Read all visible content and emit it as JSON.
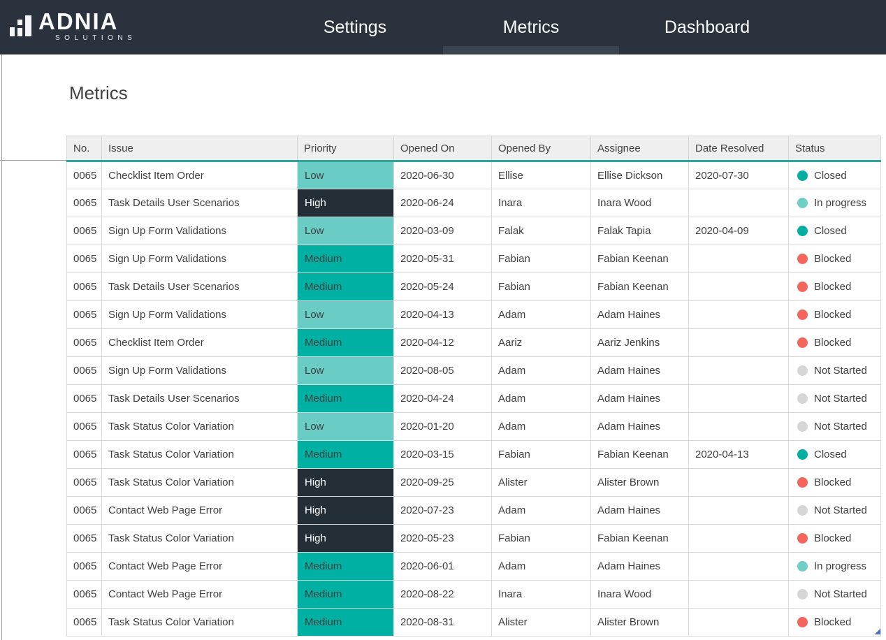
{
  "brand": {
    "name": "ADNIA",
    "tagline": "SOLUTIONS"
  },
  "nav": {
    "items": [
      {
        "label": "Settings",
        "active": false
      },
      {
        "label": "Metrics",
        "active": true
      },
      {
        "label": "Dashboard",
        "active": false
      }
    ]
  },
  "page": {
    "title": "Metrics"
  },
  "table": {
    "columns": [
      "No.",
      "Issue",
      "Priority",
      "Opened On",
      "Opened By",
      "Assignee",
      "Date Resolved",
      "Status"
    ],
    "rows": [
      {
        "no": "0065",
        "issue": "Checklist Item Order",
        "priority": "Low",
        "opened_on": "2020-06-30",
        "opened_by": "Ellise",
        "assignee": "Ellise Dickson",
        "date_resolved": "2020-07-30",
        "status": "Closed"
      },
      {
        "no": "0065",
        "issue": "Task Details User Scenarios",
        "priority": "High",
        "opened_on": "2020-06-24",
        "opened_by": "Inara",
        "assignee": "Inara Wood",
        "date_resolved": "",
        "status": "In progress"
      },
      {
        "no": "0065",
        "issue": "Sign Up Form Validations",
        "priority": "Low",
        "opened_on": "2020-03-09",
        "opened_by": "Falak",
        "assignee": "Falak Tapia",
        "date_resolved": "2020-04-09",
        "status": "Closed"
      },
      {
        "no": "0065",
        "issue": "Sign Up Form Validations",
        "priority": "Medium",
        "opened_on": "2020-05-31",
        "opened_by": "Fabian",
        "assignee": "Fabian Keenan",
        "date_resolved": "",
        "status": "Blocked"
      },
      {
        "no": "0065",
        "issue": "Task Details User Scenarios",
        "priority": "Medium",
        "opened_on": "2020-05-24",
        "opened_by": "Fabian",
        "assignee": "Fabian Keenan",
        "date_resolved": "",
        "status": "Blocked"
      },
      {
        "no": "0065",
        "issue": "Sign Up Form Validations",
        "priority": "Low",
        "opened_on": "2020-04-13",
        "opened_by": "Adam",
        "assignee": "Adam Haines",
        "date_resolved": "",
        "status": "Blocked"
      },
      {
        "no": "0065",
        "issue": "Checklist Item Order",
        "priority": "Medium",
        "opened_on": "2020-04-12",
        "opened_by": "Aariz",
        "assignee": "Aariz Jenkins",
        "date_resolved": "",
        "status": "Blocked"
      },
      {
        "no": "0065",
        "issue": "Sign Up Form Validations",
        "priority": "Low",
        "opened_on": "2020-08-05",
        "opened_by": "Adam",
        "assignee": "Adam Haines",
        "date_resolved": "",
        "status": "Not Started"
      },
      {
        "no": "0065",
        "issue": "Task Details User Scenarios",
        "priority": "Medium",
        "opened_on": "2020-04-24",
        "opened_by": "Adam",
        "assignee": "Adam Haines",
        "date_resolved": "",
        "status": "Not Started"
      },
      {
        "no": "0065",
        "issue": "Task Status Color Variation",
        "priority": "Low",
        "opened_on": "2020-01-20",
        "opened_by": "Adam",
        "assignee": "Adam Haines",
        "date_resolved": "",
        "status": "Not Started"
      },
      {
        "no": "0065",
        "issue": "Task Status Color Variation",
        "priority": "Medium",
        "opened_on": "2020-03-15",
        "opened_by": "Fabian",
        "assignee": "Fabian Keenan",
        "date_resolved": "2020-04-13",
        "status": "Closed"
      },
      {
        "no": "0065",
        "issue": "Task Status Color Variation",
        "priority": "High",
        "opened_on": "2020-09-25",
        "opened_by": "Alister",
        "assignee": "Alister Brown",
        "date_resolved": "",
        "status": "Blocked"
      },
      {
        "no": "0065",
        "issue": "Contact Web Page Error",
        "priority": "High",
        "opened_on": "2020-07-23",
        "opened_by": "Adam",
        "assignee": "Adam Haines",
        "date_resolved": "",
        "status": "Not Started"
      },
      {
        "no": "0065",
        "issue": "Task Status Color Variation",
        "priority": "High",
        "opened_on": "2020-05-23",
        "opened_by": "Fabian",
        "assignee": "Fabian Keenan",
        "date_resolved": "",
        "status": "Blocked"
      },
      {
        "no": "0065",
        "issue": "Contact Web Page Error",
        "priority": "Medium",
        "opened_on": "2020-06-01",
        "opened_by": "Adam",
        "assignee": "Adam Haines",
        "date_resolved": "",
        "status": "In progress"
      },
      {
        "no": "0065",
        "issue": "Contact Web Page Error",
        "priority": "Medium",
        "opened_on": "2020-08-22",
        "opened_by": "Inara",
        "assignee": "Inara Wood",
        "date_resolved": "",
        "status": "Not Started"
      },
      {
        "no": "0065",
        "issue": "Task Status Color Variation",
        "priority": "Medium",
        "opened_on": "2020-08-31",
        "opened_by": "Alister",
        "assignee": "Alister Brown",
        "date_resolved": "",
        "status": "Blocked"
      }
    ]
  },
  "colors": {
    "header_bg": "#2a333d",
    "active_tab_indicator": "#3a4450",
    "header_underline": "#2fa59c",
    "priority_low": "#69ccc5",
    "priority_medium": "#00b0a3",
    "priority_high": "#232e36",
    "status_closed": "#00aea2",
    "status_in_progress": "#6fcfc7",
    "status_blocked": "#f4655d",
    "status_not_started": "#d6d6d6"
  }
}
